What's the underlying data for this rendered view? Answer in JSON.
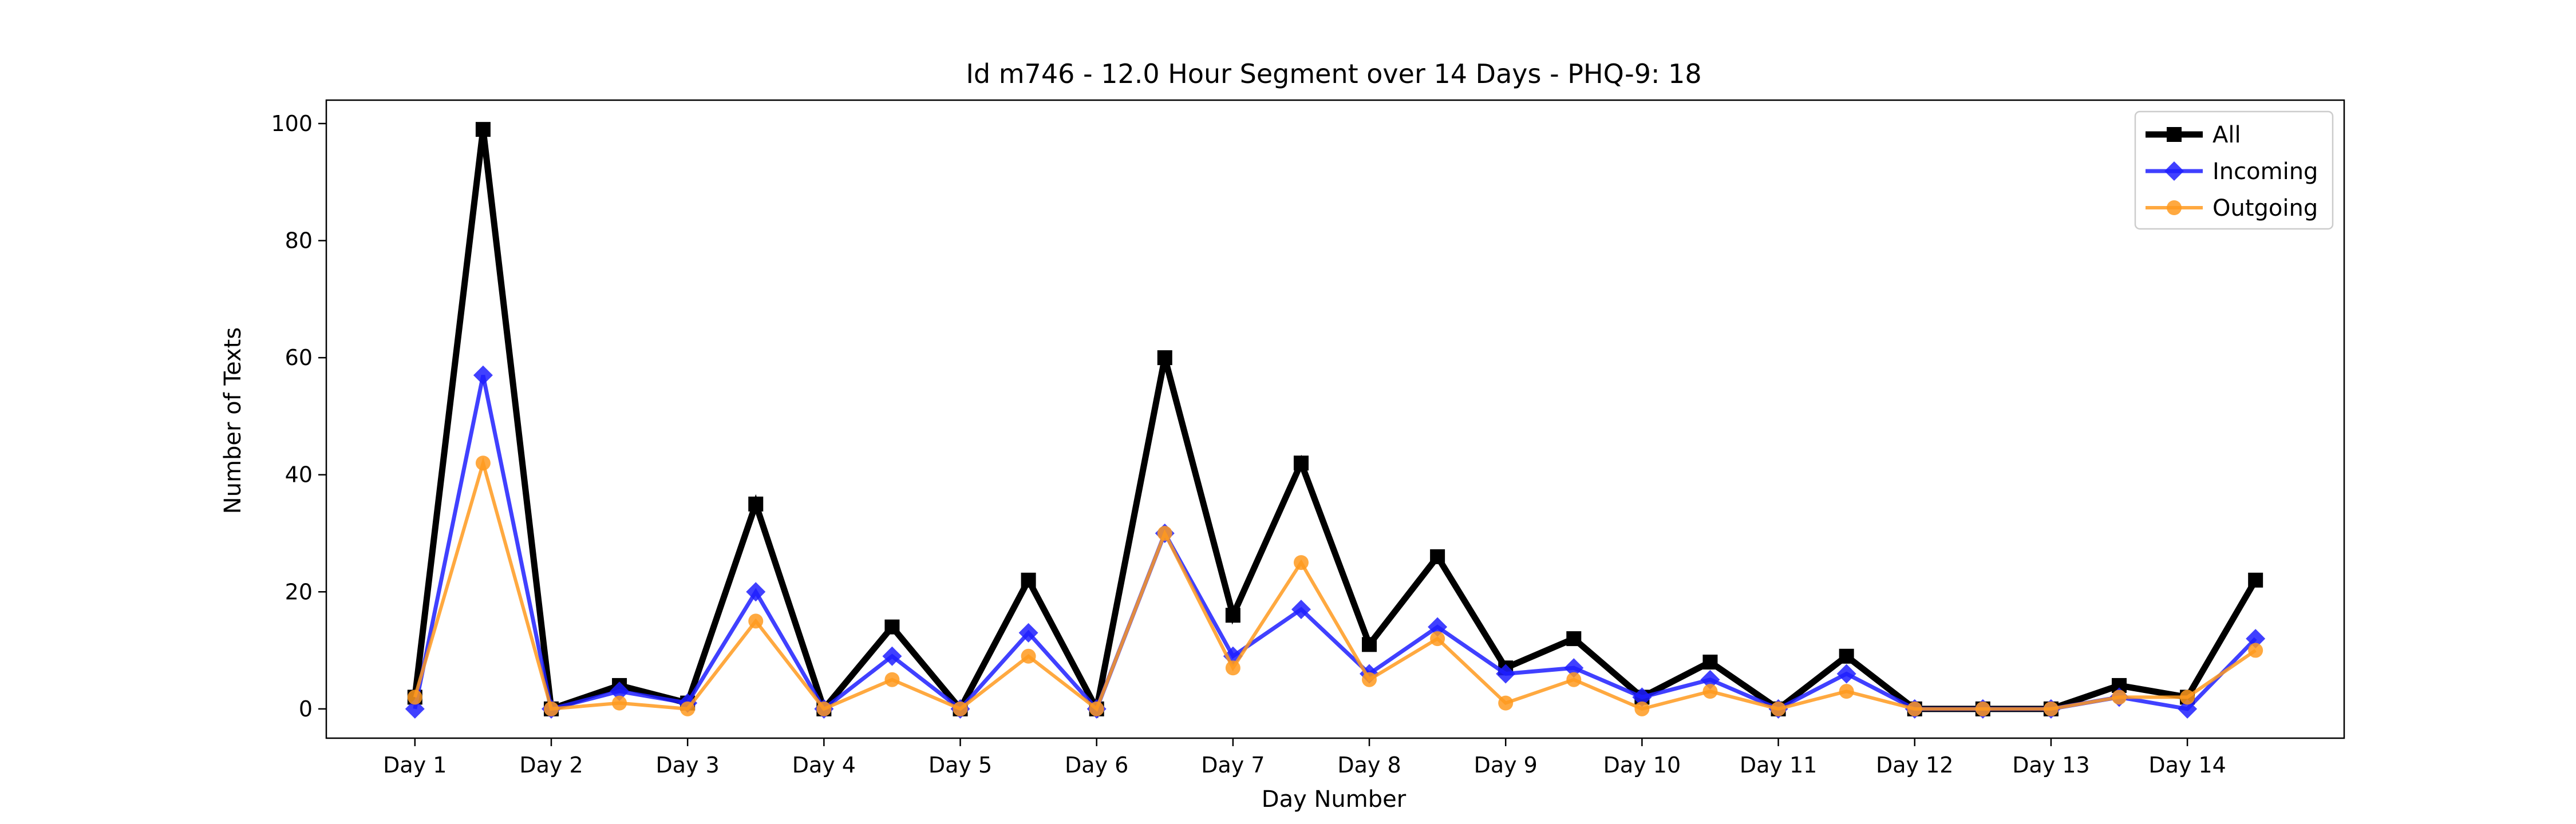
{
  "chart_data": {
    "type": "line",
    "title": "Id m746 - 12.0 Hour Segment over 14 Days - PHQ-9: 18",
    "xlabel": "Day Number",
    "ylabel": "Number of Texts",
    "x_tick_labels": [
      "Day 1",
      "Day 2",
      "Day 3",
      "Day 4",
      "Day 5",
      "Day 6",
      "Day 7",
      "Day 8",
      "Day 9",
      "Day 10",
      "Day 11",
      "Day 12",
      "Day 13",
      "Day 14"
    ],
    "y_ticks": [
      0,
      20,
      40,
      60,
      80,
      100
    ],
    "ylim": [
      -5,
      104
    ],
    "xlim": [
      -1.3,
      28.3
    ],
    "grid": false,
    "legend_position": "top-right",
    "series": [
      {
        "name": "All",
        "color": "#000000",
        "marker": "square",
        "values": [
          2,
          99,
          0,
          4,
          1,
          35,
          0,
          14,
          0,
          22,
          0,
          60,
          16,
          42,
          11,
          26,
          7,
          12,
          2,
          8,
          0,
          9,
          0,
          0,
          0,
          4,
          2,
          22
        ]
      },
      {
        "name": "Incoming",
        "color": "#1f1fff",
        "marker": "diamond",
        "values": [
          0,
          57,
          0,
          3,
          1,
          20,
          0,
          9,
          0,
          13,
          0,
          30,
          9,
          17,
          6,
          14,
          6,
          7,
          2,
          5,
          0,
          6,
          0,
          0,
          0,
          2,
          0,
          12
        ]
      },
      {
        "name": "Outgoing",
        "color": "#ff9a1f",
        "marker": "circle",
        "values": [
          2,
          42,
          0,
          1,
          0,
          15,
          0,
          5,
          0,
          9,
          0,
          30,
          7,
          25,
          5,
          12,
          1,
          5,
          0,
          3,
          0,
          3,
          0,
          0,
          0,
          2,
          2,
          10
        ]
      }
    ]
  }
}
